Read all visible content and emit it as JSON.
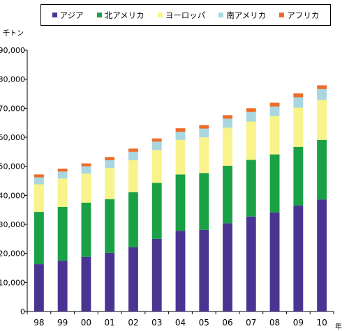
{
  "chart_data": {
    "type": "bar",
    "stacked": true,
    "unit_label": "千トン",
    "year_label": "年",
    "categories": [
      "98",
      "99",
      "00",
      "01",
      "02",
      "03",
      "04",
      "05",
      "06",
      "07",
      "08",
      "09",
      "10"
    ],
    "ylim": [
      0,
      90000
    ],
    "yticks": [
      0,
      10000,
      20000,
      30000,
      40000,
      50000,
      60000,
      70000,
      80000,
      90000
    ],
    "ytick_labels": [
      "0",
      "10,000",
      "20,000",
      "30,000",
      "40,000",
      "50,000",
      "60,000",
      "70,000",
      "80,000",
      "90,000"
    ],
    "legend_position": "top",
    "grid": false,
    "series": [
      {
        "name": "アジア",
        "color": "#4a3492",
        "values": [
          16300,
          17500,
          18800,
          20200,
          22100,
          25000,
          27800,
          28100,
          30400,
          32700,
          34100,
          36500,
          38600
        ]
      },
      {
        "name": "北アメリカ",
        "color": "#1aa045",
        "values": [
          18000,
          18500,
          18700,
          18500,
          19000,
          19300,
          19400,
          19600,
          19800,
          19500,
          20000,
          20200,
          20500
        ]
      },
      {
        "name": "ヨーロッパ",
        "color": "#f8f38a",
        "values": [
          9500,
          9800,
          10000,
          10700,
          11000,
          11300,
          11900,
          12300,
          13100,
          13200,
          13200,
          13500,
          13800
        ]
      },
      {
        "name": "南アメリカ",
        "color": "#a9d6e0",
        "values": [
          2400,
          2400,
          2500,
          2700,
          2900,
          2900,
          2800,
          3000,
          3100,
          3300,
          3300,
          3600,
          3700
        ]
      },
      {
        "name": "アフリカ",
        "color": "#ec6b29",
        "values": [
          1000,
          1000,
          1000,
          1100,
          1100,
          1100,
          1200,
          1200,
          1200,
          1300,
          1300,
          1300,
          1300
        ]
      }
    ]
  }
}
